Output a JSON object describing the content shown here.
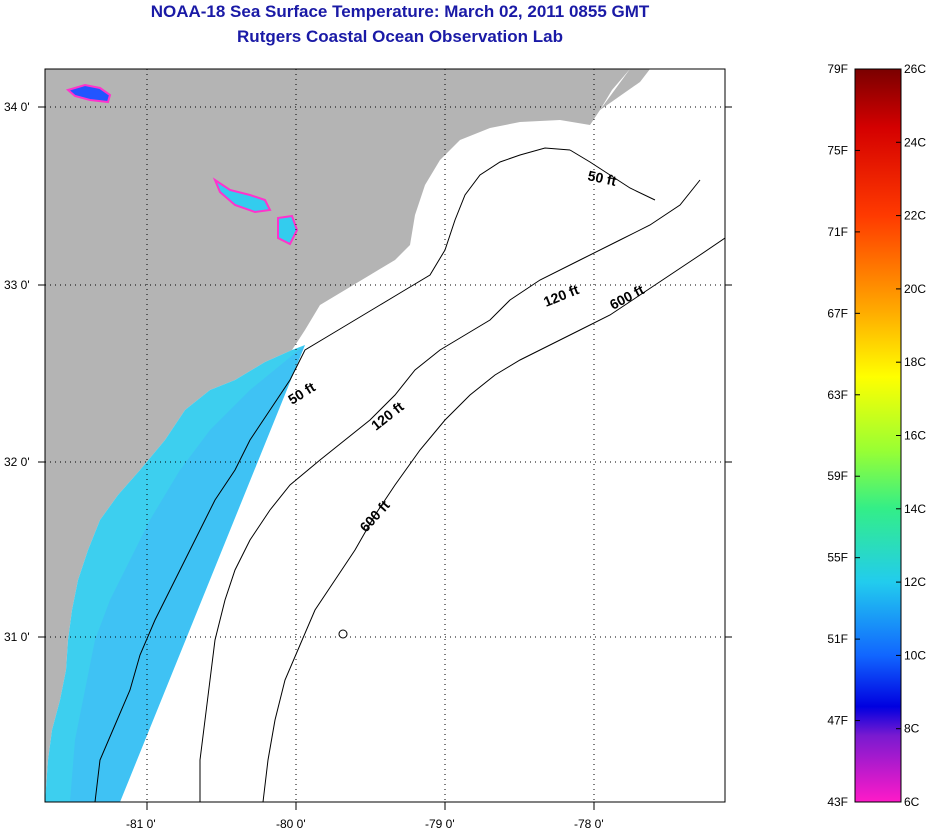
{
  "header": {
    "title": "NOAA-18 Sea Surface Temperature:  March 02, 2011 0855 GMT",
    "subtitle": "Rutgers Coastal Ocean Observation Lab"
  },
  "map": {
    "lon_ticks": [
      "-81 0'",
      "-80 0'",
      "-79 0'",
      "-78 0'"
    ],
    "lat_ticks": [
      "34 0'",
      "33 0'",
      "32 0'",
      "31 0'"
    ],
    "contour_labels": {
      "c50a": "50 ft",
      "c50b": "50 ft",
      "c120a": "120 ft",
      "c120b": "120 ft",
      "c600a": "600 ft",
      "c600b": "600 ft"
    },
    "colors": {
      "land": "#b4b4b4",
      "ocean_sst": "#33ccee",
      "contour": "#000000"
    }
  },
  "colorbar": {
    "fahrenheit": [
      "79F",
      "75F",
      "71F",
      "67F",
      "63F",
      "59F",
      "55F",
      "51F",
      "47F",
      "43F"
    ],
    "celsius": [
      "26C",
      "24C",
      "22C",
      "20C",
      "18C",
      "16C",
      "14C",
      "12C",
      "10C",
      "8C",
      "6C"
    ]
  }
}
